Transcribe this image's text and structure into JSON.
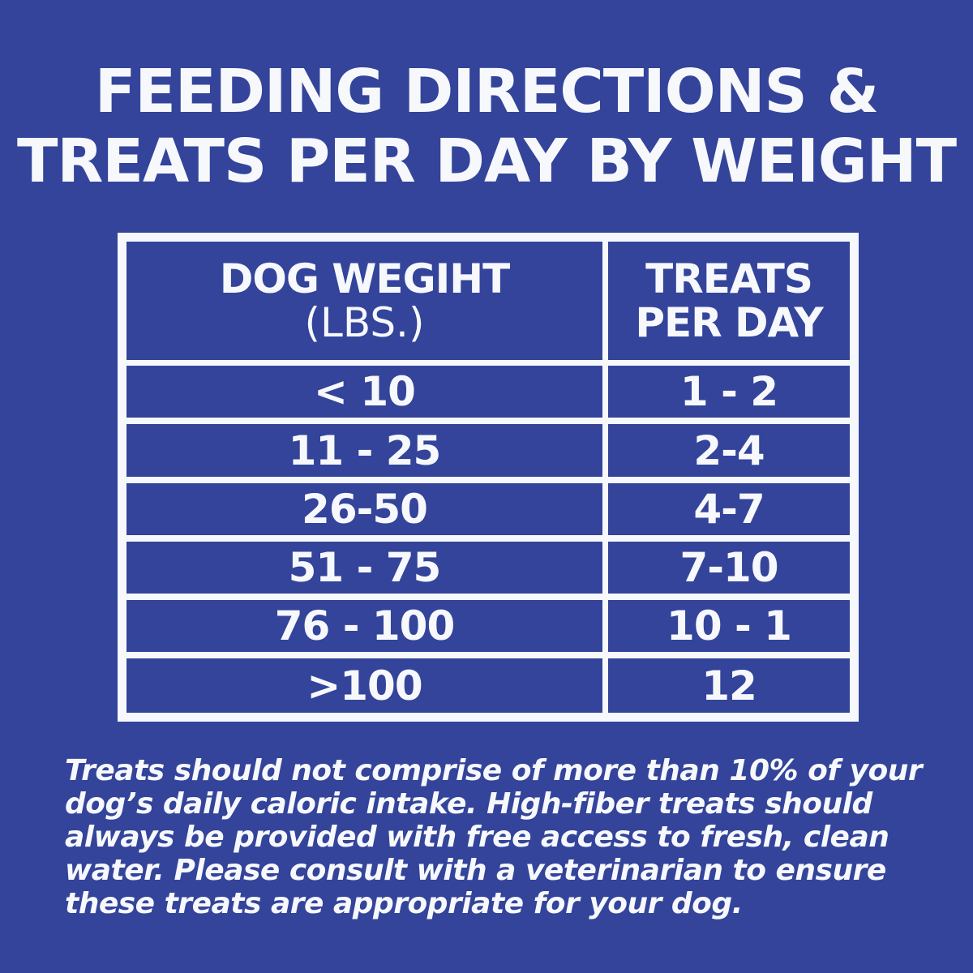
{
  "title": {
    "line1": "FEEDING DIRECTIONS &",
    "line2": "TREATS PER DAY BY WEIGHT"
  },
  "table": {
    "headers": {
      "weight_main": "DOG WEGIHT",
      "weight_sub": "(LBS.)",
      "treats_line1": "TREATS",
      "treats_line2": "PER DAY"
    },
    "rows": [
      {
        "weight": "< 10",
        "treats": "1 - 2"
      },
      {
        "weight": "11 - 25",
        "treats": "2-4"
      },
      {
        "weight": "26-50",
        "treats": "4-7"
      },
      {
        "weight": "51 - 75",
        "treats": "7-10"
      },
      {
        "weight": "76 - 100",
        "treats": "10 - 1"
      },
      {
        "weight": ">100",
        "treats": "12"
      }
    ]
  },
  "note": "Treats should not comprise of more than 10% of your dog’s daily caloric intake. High-fiber treats should always be provided with free access to fresh, clean water. Please consult with a veterinarian to ensure these treats are appropriate for your dog.",
  "colors": {
    "background": "#33449a",
    "text": "#f7f8fc",
    "table_lines": "#f7f8fc"
  }
}
